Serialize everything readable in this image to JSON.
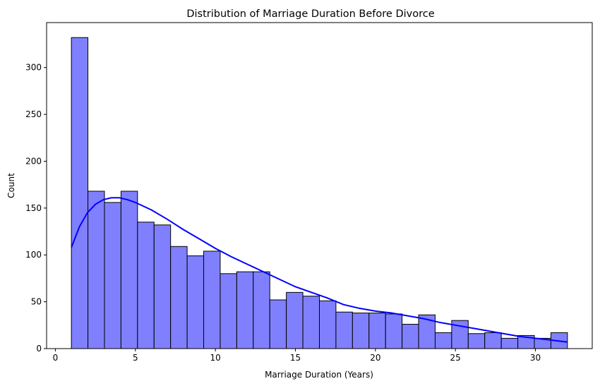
{
  "chart_data": {
    "type": "histogram",
    "title": "Distribution of Marriage Duration Before Divorce",
    "xlabel": "Marriage Duration (Years)",
    "ylabel": "Count",
    "xlim": [
      -0.55,
      33.55
    ],
    "ylim": [
      0,
      348
    ],
    "xticks": [
      0,
      5,
      10,
      15,
      20,
      25,
      30
    ],
    "yticks": [
      0,
      50,
      100,
      150,
      200,
      250,
      300
    ],
    "grid": false,
    "bar_color": "#8080ff",
    "edge_color": "#000000",
    "kde_color": "#0000ff",
    "bins": [
      {
        "start": 1.0,
        "end": 2.0333,
        "count": 332
      },
      {
        "start": 2.0333,
        "end": 3.0667,
        "count": 168
      },
      {
        "start": 3.0667,
        "end": 4.1,
        "count": 156
      },
      {
        "start": 4.1,
        "end": 5.1333,
        "count": 168
      },
      {
        "start": 5.1333,
        "end": 6.1667,
        "count": 135
      },
      {
        "start": 6.1667,
        "end": 7.2,
        "count": 132
      },
      {
        "start": 7.2,
        "end": 8.2333,
        "count": 109
      },
      {
        "start": 8.2333,
        "end": 9.2667,
        "count": 99
      },
      {
        "start": 9.2667,
        "end": 10.3,
        "count": 104
      },
      {
        "start": 10.3,
        "end": 11.3333,
        "count": 80
      },
      {
        "start": 11.3333,
        "end": 12.3667,
        "count": 82
      },
      {
        "start": 12.3667,
        "end": 13.4,
        "count": 82
      },
      {
        "start": 13.4,
        "end": 14.4333,
        "count": 52
      },
      {
        "start": 14.4333,
        "end": 15.4667,
        "count": 60
      },
      {
        "start": 15.4667,
        "end": 16.5,
        "count": 56
      },
      {
        "start": 16.5,
        "end": 17.5333,
        "count": 51
      },
      {
        "start": 17.5333,
        "end": 18.5667,
        "count": 39
      },
      {
        "start": 18.5667,
        "end": 19.6,
        "count": 38
      },
      {
        "start": 19.6,
        "end": 20.6333,
        "count": 38
      },
      {
        "start": 20.6333,
        "end": 21.6667,
        "count": 37
      },
      {
        "start": 21.6667,
        "end": 22.7,
        "count": 26
      },
      {
        "start": 22.7,
        "end": 23.7333,
        "count": 36
      },
      {
        "start": 23.7333,
        "end": 24.7667,
        "count": 17
      },
      {
        "start": 24.7667,
        "end": 25.8,
        "count": 30
      },
      {
        "start": 25.8,
        "end": 26.8333,
        "count": 16
      },
      {
        "start": 26.8333,
        "end": 27.8667,
        "count": 17
      },
      {
        "start": 27.8667,
        "end": 28.9,
        "count": 11
      },
      {
        "start": 28.9,
        "end": 29.9333,
        "count": 14
      },
      {
        "start": 29.9333,
        "end": 30.9667,
        "count": 11
      },
      {
        "start": 30.9667,
        "end": 32.0,
        "count": 17
      }
    ],
    "kde": {
      "name": "KDE",
      "x": [
        1,
        1.5,
        2,
        2.5,
        3,
        3.5,
        4,
        4.5,
        5,
        6,
        7,
        8,
        9,
        10,
        11,
        12,
        13,
        14,
        15,
        16,
        17,
        18,
        19,
        20,
        21,
        22,
        23,
        24,
        25,
        26,
        27,
        28,
        29,
        30,
        31,
        32
      ],
      "y": [
        108,
        130,
        145,
        154,
        159,
        161,
        161,
        159,
        156,
        148,
        138,
        127,
        117,
        107,
        98,
        90,
        82,
        74,
        66,
        60,
        54,
        47,
        43,
        40,
        38,
        35,
        32,
        28,
        25,
        22,
        19,
        16,
        13,
        11,
        9,
        7
      ]
    }
  }
}
